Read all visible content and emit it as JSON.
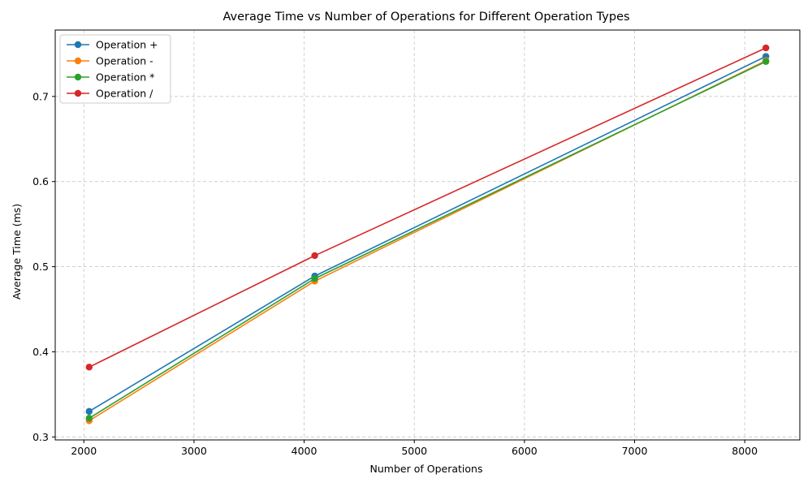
{
  "chart_data": {
    "type": "line",
    "title": "Average Time vs Number of Operations for Different Operation Types",
    "xlabel": "Number of Operations",
    "ylabel": "Average Time (ms)",
    "x": [
      2048,
      4096,
      8192
    ],
    "xlim": [
      1740,
      8500
    ],
    "ylim": [
      0.2965,
      0.778
    ],
    "xticks": [
      2000,
      3000,
      4000,
      5000,
      6000,
      7000,
      8000
    ],
    "yticks": [
      0.3,
      0.4,
      0.5,
      0.6,
      0.7
    ],
    "grid": true,
    "legend_position": "top-left",
    "series": [
      {
        "name": "Operation +",
        "color": "#1f77b4",
        "values": [
          0.33,
          0.489,
          0.747
        ]
      },
      {
        "name": "Operation -",
        "color": "#ff7f0e",
        "values": [
          0.319,
          0.483,
          0.742
        ]
      },
      {
        "name": "Operation *",
        "color": "#2ca02c",
        "values": [
          0.322,
          0.486,
          0.741
        ]
      },
      {
        "name": "Operation /",
        "color": "#d62728",
        "values": [
          0.382,
          0.513,
          0.757
        ]
      }
    ]
  }
}
